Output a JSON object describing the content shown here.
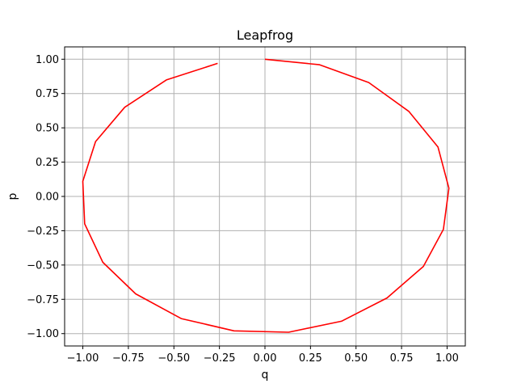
{
  "chart_data": {
    "type": "line",
    "title": "Leapfrog",
    "xlabel": "q",
    "ylabel": "p",
    "xlim": [
      -1.1,
      1.1
    ],
    "ylim": [
      -1.09,
      1.09
    ],
    "grid": true,
    "xticks": [
      "−1.00",
      "−0.75",
      "−0.50",
      "−0.25",
      "0.00",
      "0.25",
      "0.50",
      "0.75",
      "1.00"
    ],
    "yticks": [
      "−1.00",
      "−0.75",
      "−0.50",
      "−0.25",
      "0.00",
      "0.25",
      "0.50",
      "0.75",
      "1.00"
    ],
    "series": [
      {
        "color": "#ff0000",
        "x": [
          0.0,
          0.3,
          0.57,
          0.79,
          0.95,
          1.01,
          0.98,
          0.87,
          0.67,
          0.42,
          0.13,
          -0.17,
          -0.46,
          -0.71,
          -0.89,
          -0.99,
          -1.0,
          -0.93,
          -0.77,
          -0.54,
          -0.26
        ],
        "y": [
          1.0,
          0.96,
          0.83,
          0.62,
          0.36,
          0.06,
          -0.24,
          -0.51,
          -0.74,
          -0.91,
          -0.99,
          -0.98,
          -0.89,
          -0.71,
          -0.48,
          -0.2,
          0.11,
          0.4,
          0.65,
          0.85,
          0.97
        ]
      }
    ]
  }
}
